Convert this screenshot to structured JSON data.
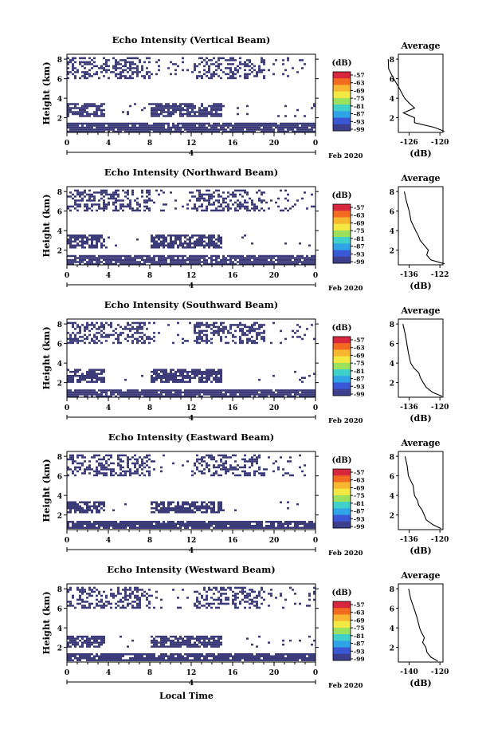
{
  "xaxis": {
    "ticks": [
      "0",
      "4",
      "8",
      "12",
      "16",
      "20",
      "0"
    ],
    "day_label": "4",
    "date_label": "Feb 2020",
    "title": "Local Time"
  },
  "colorbar": {
    "unit": "(dB)",
    "ticks": [
      "-57",
      "-63",
      "-69",
      "-75",
      "-81",
      "-87",
      "-93",
      "-99"
    ],
    "colors": [
      "#d7263d",
      "#f36b21",
      "#f7b731",
      "#f4e842",
      "#9be15d",
      "#3fd0c9",
      "#2fa4e7",
      "#3a57d6",
      "#3b3f8c"
    ]
  },
  "fill_color": "#3a3a78",
  "panels": [
    {
      "title": "Echo Intensity (Vertical Beam)",
      "ylabel": "Height (km)",
      "yticks": [
        "2",
        "4",
        "6",
        "8"
      ],
      "average": {
        "title": "Average",
        "xlabel": "(dB)",
        "xticks": [
          "-126",
          "-120"
        ],
        "yticks": [
          "2",
          "4",
          "6",
          "8"
        ]
      }
    },
    {
      "title": "Echo Intensity (Northward Beam)",
      "ylabel": "Height (km)",
      "yticks": [
        "2",
        "4",
        "6",
        "8"
      ],
      "average": {
        "title": "Average",
        "xlabel": "(dB)",
        "xticks": [
          "-136",
          "-122"
        ],
        "yticks": [
          "2",
          "4",
          "6",
          "8"
        ]
      }
    },
    {
      "title": "Echo Intensity (Southward Beam)",
      "ylabel": "Height (km)",
      "yticks": [
        "2",
        "4",
        "6",
        "8"
      ],
      "average": {
        "title": "Average",
        "xlabel": "(dB)",
        "xticks": [
          "-136",
          "-120"
        ],
        "yticks": [
          "2",
          "4",
          "6",
          "8"
        ]
      }
    },
    {
      "title": "Echo Intensity (Eastward Beam)",
      "ylabel": "Height (km)",
      "yticks": [
        "2",
        "4",
        "6",
        "8"
      ],
      "average": {
        "title": "Average",
        "xlabel": "(dB)",
        "xticks": [
          "-136",
          "-120"
        ],
        "yticks": [
          "2",
          "4",
          "6",
          "8"
        ]
      }
    },
    {
      "title": "Echo Intensity (Westward Beam)",
      "ylabel": "Height (km)",
      "yticks": [
        "2",
        "4",
        "6",
        "8"
      ],
      "average": {
        "title": "Average",
        "xlabel": "(dB)",
        "xticks": [
          "-140",
          "-120"
        ],
        "yticks": [
          "2",
          "4",
          "6",
          "8"
        ]
      }
    }
  ],
  "chart_data": {
    "type": "heatmap",
    "x_units": "hours, local time, 4 Feb 2020",
    "xlim": [
      0,
      24
    ],
    "ylim": [
      0.5,
      8.5
    ],
    "color_scale_db": [
      -99,
      -57
    ],
    "echo_layers_km": [
      {
        "panel": "Vertical Beam",
        "layers": [
          [
            0.6,
            1.5
          ],
          [
            2.2,
            3.5
          ],
          [
            6.0,
            8.2
          ]
        ]
      },
      {
        "panel": "Northward Beam",
        "layers": [
          [
            0.6,
            1.5
          ],
          [
            2.2,
            3.6
          ],
          [
            6.0,
            8.2
          ]
        ]
      },
      {
        "panel": "Southward Beam",
        "layers": [
          [
            0.6,
            1.3
          ],
          [
            2.0,
            3.4
          ],
          [
            6.0,
            8.2
          ]
        ]
      },
      {
        "panel": "Eastward Beam",
        "layers": [
          [
            0.6,
            1.4
          ],
          [
            2.2,
            3.4
          ],
          [
            6.0,
            8.2
          ]
        ]
      },
      {
        "panel": "Westward Beam",
        "layers": [
          [
            0.6,
            1.4
          ],
          [
            2.0,
            3.2
          ],
          [
            6.0,
            8.2
          ]
        ]
      }
    ],
    "average_profiles": [
      {
        "panel": "Vertical Beam",
        "height_km": [
          0.6,
          1.0,
          1.5,
          2.0,
          2.5,
          3.0,
          3.5,
          4.0,
          5.0,
          6.0,
          7.0,
          8.0
        ],
        "db": [
          -119,
          -121,
          -125,
          -125,
          -127,
          -125,
          -126,
          -127,
          -128,
          -129,
          -130,
          -130
        ]
      },
      {
        "panel": "Northward Beam",
        "height_km": [
          0.6,
          1.0,
          1.5,
          2.0,
          2.5,
          3.0,
          3.5,
          4.0,
          5.0,
          6.0,
          7.0,
          8.0
        ],
        "db": [
          -120,
          -126,
          -128,
          -127,
          -129,
          -131,
          -132,
          -133,
          -135,
          -136,
          -137,
          -138
        ]
      },
      {
        "panel": "Southward Beam",
        "height_km": [
          0.6,
          1.0,
          1.5,
          2.0,
          2.5,
          3.0,
          3.5,
          4.0,
          5.0,
          6.0,
          7.0,
          8.0
        ],
        "db": [
          -119,
          -124,
          -127,
          -129,
          -130,
          -131,
          -134,
          -135,
          -136,
          -137,
          -138,
          -139
        ]
      },
      {
        "panel": "Eastward Beam",
        "height_km": [
          0.6,
          1.0,
          1.5,
          2.0,
          2.5,
          3.0,
          3.5,
          4.0,
          5.0,
          6.0,
          7.0,
          8.0
        ],
        "db": [
          -119,
          -124,
          -127,
          -128,
          -129,
          -131,
          -132,
          -133,
          -134,
          -136,
          -137,
          -138
        ]
      },
      {
        "panel": "Westward Beam",
        "height_km": [
          0.6,
          1.0,
          1.5,
          2.0,
          2.5,
          3.0,
          3.5,
          4.0,
          5.0,
          6.0,
          7.0,
          8.0
        ],
        "db": [
          -121,
          -126,
          -128,
          -129,
          -131,
          -130,
          -132,
          -133,
          -135,
          -137,
          -139,
          -140
        ]
      }
    ]
  }
}
